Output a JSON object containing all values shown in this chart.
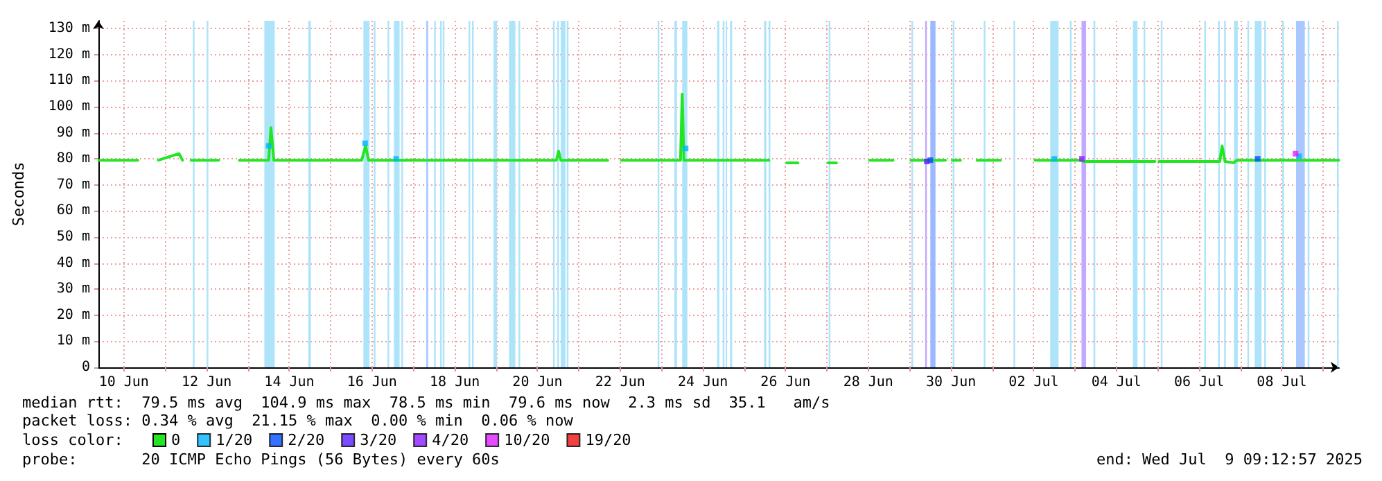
{
  "chart_data": {
    "type": "line",
    "ylabel": "Seconds",
    "legend_title": "loss color:",
    "annotations": [
      "median rtt:  79.5 ms avg  104.9 ms max  78.5 ms min  79.6 ms now  2.3 ms sd  35.1   am/s",
      "packet loss: 0.34 % avg  21.15 % max  0.00 % min  0.06 % now",
      "probe:       20 ICMP Echo Pings (56 Bytes) every 60s",
      "end: Wed Jul  9 09:12:57 2025"
    ],
    "xlim": [
      "2025-06-09T09:12",
      "2025-07-09T09:12"
    ],
    "xticks": [
      {
        "value": "2025-06-10",
        "label": "10 Jun"
      },
      {
        "value": "2025-06-11",
        "label": null
      },
      {
        "value": "2025-06-12",
        "label": "12 Jun"
      },
      {
        "value": "2025-06-13",
        "label": null
      },
      {
        "value": "2025-06-14",
        "label": "14 Jun"
      },
      {
        "value": "2025-06-15",
        "label": null
      },
      {
        "value": "2025-06-16",
        "label": "16 Jun"
      },
      {
        "value": "2025-06-17",
        "label": null
      },
      {
        "value": "2025-06-18",
        "label": "18 Jun"
      },
      {
        "value": "2025-06-19",
        "label": null
      },
      {
        "value": "2025-06-20",
        "label": "20 Jun"
      },
      {
        "value": "2025-06-21",
        "label": null
      },
      {
        "value": "2025-06-22",
        "label": "22 Jun"
      },
      {
        "value": "2025-06-23",
        "label": null
      },
      {
        "value": "2025-06-24",
        "label": "24 Jun"
      },
      {
        "value": "2025-06-25",
        "label": null
      },
      {
        "value": "2025-06-26",
        "label": "26 Jun"
      },
      {
        "value": "2025-06-27",
        "label": null
      },
      {
        "value": "2025-06-28",
        "label": "28 Jun"
      },
      {
        "value": "2025-06-29",
        "label": null
      },
      {
        "value": "2025-06-30",
        "label": "30 Jun"
      },
      {
        "value": "2025-07-01",
        "label": null
      },
      {
        "value": "2025-07-02",
        "label": "02 Jul"
      },
      {
        "value": "2025-07-03",
        "label": null
      },
      {
        "value": "2025-07-04",
        "label": "04 Jul"
      },
      {
        "value": "2025-07-05",
        "label": null
      },
      {
        "value": "2025-07-06",
        "label": "06 Jul"
      },
      {
        "value": "2025-07-07",
        "label": null
      },
      {
        "value": "2025-07-08",
        "label": "08 Jul"
      },
      {
        "value": "2025-07-09",
        "label": null
      }
    ],
    "ylim": [
      0,
      133
    ],
    "yticks": [
      0,
      {
        "value": 10,
        "label": "10 m"
      },
      {
        "value": 20,
        "label": "20 m"
      },
      {
        "value": 30,
        "label": "30 m"
      },
      {
        "value": 40,
        "label": "40 m"
      },
      {
        "value": 50,
        "label": "50 m"
      },
      {
        "value": 60,
        "label": "60 m"
      },
      {
        "value": 70,
        "label": "70 m"
      },
      {
        "value": 80,
        "label": "80 m"
      },
      {
        "value": 90,
        "label": "90 m"
      },
      {
        "value": 100,
        "label": "100 m"
      },
      {
        "value": 110,
        "label": "110 m"
      },
      {
        "value": 120,
        "label": "120 m"
      },
      {
        "value": 130,
        "label": "130 m"
      }
    ],
    "grid": true,
    "legend": "bottom left",
    "series": [
      {
        "name": "0",
        "marker": "none",
        "color": "#22e622",
        "x": [
          "2025-06-09T09:30",
          "2025-06-10T08:00",
          "2025-06-10T14:00",
          "2025-06-10T20:00",
          "2025-06-11T08:00",
          "2025-06-11T10:00",
          "2025-06-11T13:00",
          "2025-06-11T15:00",
          "2025-06-12T07:00",
          "2025-06-12T12:00",
          "2025-06-12T19:00",
          "2025-06-13T12:00",
          "2025-06-13T13:20",
          "2025-06-13T15:00",
          "2025-06-15T18:00",
          "2025-06-15T20:15",
          "2025-06-15T22:00",
          "2025-06-20T11:00",
          "2025-06-20T12:15",
          "2025-06-20T13:30",
          "2025-06-21T16:45",
          "2025-06-21T20:00",
          "2025-06-22T00:45",
          "2025-06-23T11:00",
          "2025-06-23T12:00",
          "2025-06-23T13:00",
          "2025-06-25T14:20",
          "2025-06-25T20:00",
          "2025-06-26T00:45",
          "2025-06-26T07:10",
          "2025-06-26T12:00",
          "2025-06-27T00:45",
          "2025-06-27T05:30",
          "2025-06-27T12:00",
          "2025-06-28T00:45",
          "2025-06-28T14:20",
          "2025-06-28T20:00",
          "2025-06-29T00:45",
          "2025-06-29T20:45",
          "2025-06-29T23:00",
          "2025-06-30T00:45",
          "2025-06-30T05:30",
          "2025-06-30T10:00",
          "2025-06-30T15:10",
          "2025-07-01T04:45",
          "2025-07-01T16:00",
          "2025-07-02T00:45",
          "2025-07-03T03:00",
          "2025-07-03T05:00",
          "2025-07-04T22:20",
          "2025-07-05T00:00",
          "2025-07-05T00:45",
          "2025-07-06T12:00",
          "2025-07-06T13:20",
          "2025-07-06T15:00",
          "2025-07-06T20:00",
          "2025-07-06T22:00",
          "2025-07-09T09:00"
        ],
        "values": [
          79.5,
          79.5,
          null,
          79.5,
          82,
          79.5,
          null,
          79.5,
          79.5,
          null,
          79.5,
          79.5,
          92,
          79.5,
          79.5,
          85,
          79.5,
          79.5,
          83,
          79.5,
          79.5,
          null,
          79.5,
          79.5,
          104.9,
          79.5,
          79.5,
          null,
          78.5,
          78.5,
          null,
          78.5,
          78.5,
          null,
          79.5,
          79.5,
          null,
          79.5,
          79.5,
          null,
          79.5,
          79.5,
          null,
          79.5,
          79.5,
          null,
          79.5,
          79.5,
          79,
          79,
          null,
          79,
          79,
          85,
          79,
          78.5,
          79.5,
          79.5
        ]
      },
      {
        "name": "1/20",
        "type": "scatter",
        "marker": "square",
        "color": "#00b4ff",
        "x": [
          "2025-06-13T12:00",
          "2025-06-15T20:00",
          "2025-06-16T14:00",
          "2025-06-23T14:00",
          "2025-07-02T12:00",
          "2025-07-08T10:00"
        ],
        "values": [
          85,
          86,
          80,
          84,
          80,
          81
        ]
      },
      {
        "name": "2/20",
        "type": "scatter",
        "marker": "square",
        "color": "#0050ff",
        "x": [
          "2025-06-29T12:00",
          "2025-07-07T10:00"
        ],
        "values": [
          79.5,
          80
        ]
      },
      {
        "name": "3/20",
        "type": "scatter",
        "marker": "square",
        "color": "#5a1eff",
        "x": [
          "2025-06-29T10:00"
        ],
        "values": [
          79
        ]
      },
      {
        "name": "4/20",
        "type": "scatter",
        "marker": "square",
        "color": "#8c1eff",
        "x": [
          "2025-07-03T04:00"
        ],
        "values": [
          80
        ]
      },
      {
        "name": "10/20",
        "type": "scatter",
        "marker": "square",
        "color": "#e01eff",
        "x": [
          "2025-07-08T08:00"
        ],
        "values": [
          82
        ]
      },
      {
        "name": "19/20",
        "type": "scatter",
        "marker": "square",
        "color": "#ee1111"
      }
    ],
    "bands": [
      {
        "axis": "x",
        "from": "2025-06-11T16:00",
        "to": "2025-06-11T17:00",
        "color": "#aee4fa"
      },
      {
        "axis": "x",
        "from": "2025-06-12T00:00",
        "to": "2025-06-12T01:00",
        "color": "#aee4fa"
      },
      {
        "axis": "x",
        "from": "2025-06-13T09:30",
        "to": "2025-06-13T15:30",
        "color": "#aee4fa"
      },
      {
        "axis": "x",
        "from": "2025-06-14T11:00",
        "to": "2025-06-14T12:30",
        "color": "#aee4fa"
      },
      {
        "axis": "x",
        "from": "2025-06-15T19:00",
        "to": "2025-06-15T22:30",
        "color": "#aee4fa"
      },
      {
        "axis": "x",
        "from": "2025-06-16T01:00",
        "to": "2025-06-16T02:00",
        "color": "#aee4fa"
      },
      {
        "axis": "x",
        "from": "2025-06-16T09:00",
        "to": "2025-06-16T10:00",
        "color": "#aee4fa"
      },
      {
        "axis": "x",
        "from": "2025-06-16T12:45",
        "to": "2025-06-16T16:00",
        "color": "#aee4fa"
      },
      {
        "axis": "x",
        "from": "2025-06-16T17:00",
        "to": "2025-06-16T18:00",
        "color": "#aee4fa"
      },
      {
        "axis": "x",
        "from": "2025-06-17T07:30",
        "to": "2025-06-17T08:30",
        "color": "#9cc8ff"
      },
      {
        "axis": "x",
        "from": "2025-06-17T12:00",
        "to": "2025-06-17T13:00",
        "color": "#aee4fa"
      },
      {
        "axis": "x",
        "from": "2025-06-17T15:30",
        "to": "2025-06-17T16:30",
        "color": "#aee4fa"
      },
      {
        "axis": "x",
        "from": "2025-06-17T17:00",
        "to": "2025-06-17T18:00",
        "color": "#aee4fa"
      },
      {
        "axis": "x",
        "from": "2025-06-18T08:00",
        "to": "2025-06-18T09:00",
        "color": "#aee4fa"
      },
      {
        "axis": "x",
        "from": "2025-06-18T10:00",
        "to": "2025-06-18T11:00",
        "color": "#aee4fa"
      },
      {
        "axis": "x",
        "from": "2025-06-18T22:30",
        "to": "2025-06-19T00:30",
        "color": "#aee4fa"
      },
      {
        "axis": "x",
        "from": "2025-06-19T07:30",
        "to": "2025-06-19T11:10",
        "color": "#aee4fa"
      },
      {
        "axis": "x",
        "from": "2025-06-19T13:00",
        "to": "2025-06-19T14:00",
        "color": "#aee4fa"
      },
      {
        "axis": "x",
        "from": "2025-06-20T09:00",
        "to": "2025-06-20T10:00",
        "color": "#aee4fa"
      },
      {
        "axis": "x",
        "from": "2025-06-20T11:30",
        "to": "2025-06-20T12:30",
        "color": "#aee4fa"
      },
      {
        "axis": "x",
        "from": "2025-06-20T13:30",
        "to": "2025-06-20T16:15",
        "color": "#aee4fa"
      },
      {
        "axis": "x",
        "from": "2025-06-20T17:00",
        "to": "2025-06-20T18:00",
        "color": "#aee4fa"
      },
      {
        "axis": "x",
        "from": "2025-06-22T21:45",
        "to": "2025-06-22T22:45",
        "color": "#aee4fa"
      },
      {
        "axis": "x",
        "from": "2025-06-23T07:30",
        "to": "2025-06-23T09:00",
        "color": "#aee4fa"
      },
      {
        "axis": "x",
        "from": "2025-06-23T12:00",
        "to": "2025-06-23T15:00",
        "color": "#aee4fa"
      },
      {
        "axis": "x",
        "from": "2025-06-24T08:15",
        "to": "2025-06-24T09:35",
        "color": "#aee4fa"
      },
      {
        "axis": "x",
        "from": "2025-06-24T11:30",
        "to": "2025-06-24T12:30",
        "color": "#aee4fa"
      },
      {
        "axis": "x",
        "from": "2025-06-24T13:15",
        "to": "2025-06-24T14:00",
        "color": "#aee4fa"
      },
      {
        "axis": "x",
        "from": "2025-06-24T15:45",
        "to": "2025-06-24T17:00",
        "color": "#aee4fa"
      },
      {
        "axis": "x",
        "from": "2025-06-25T11:30",
        "to": "2025-06-25T12:50",
        "color": "#aee4fa"
      },
      {
        "axis": "x",
        "from": "2025-06-25T14:10",
        "to": "2025-06-25T15:10",
        "color": "#aee4fa"
      },
      {
        "axis": "x",
        "from": "2025-06-27T01:00",
        "to": "2025-06-27T02:00",
        "color": "#aee4fa"
      },
      {
        "axis": "x",
        "from": "2025-06-29T01:00",
        "to": "2025-06-29T02:00",
        "color": "#aee4fa"
      },
      {
        "axis": "x",
        "from": "2025-06-29T09:00",
        "to": "2025-06-29T10:00",
        "color": "#c4a8ff"
      },
      {
        "axis": "x",
        "from": "2025-06-29T12:00",
        "to": "2025-06-29T15:00",
        "color": "#9cb8ff"
      },
      {
        "axis": "x",
        "from": "2025-06-30T01:00",
        "to": "2025-06-30T02:00",
        "color": "#aee4fa"
      },
      {
        "axis": "x",
        "from": "2025-06-30T19:00",
        "to": "2025-06-30T20:00",
        "color": "#aee4fa"
      },
      {
        "axis": "x",
        "from": "2025-07-01T12:15",
        "to": "2025-07-01T13:15",
        "color": "#aee4fa"
      },
      {
        "axis": "x",
        "from": "2025-07-02T09:35",
        "to": "2025-07-02T14:25",
        "color": "#aee4fa"
      },
      {
        "axis": "x",
        "from": "2025-07-02T21:00",
        "to": "2025-07-02T22:00",
        "color": "#aee4fa"
      },
      {
        "axis": "x",
        "from": "2025-07-03T03:45",
        "to": "2025-07-03T06:25",
        "color": "#c4a8ff"
      },
      {
        "axis": "x",
        "from": "2025-07-03T10:40",
        "to": "2025-07-03T11:45",
        "color": "#aee4fa"
      },
      {
        "axis": "x",
        "from": "2025-07-04T09:35",
        "to": "2025-07-04T12:15",
        "color": "#aee4fa"
      },
      {
        "axis": "x",
        "from": "2025-07-04T15:45",
        "to": "2025-07-04T16:45",
        "color": "#aee4fa"
      },
      {
        "axis": "x",
        "from": "2025-07-05T01:45",
        "to": "2025-07-05T02:45",
        "color": "#aee4fa"
      },
      {
        "axis": "x",
        "from": "2025-07-06T03:00",
        "to": "2025-07-06T04:00",
        "color": "#aee4fa"
      },
      {
        "axis": "x",
        "from": "2025-07-06T11:00",
        "to": "2025-07-06T12:00",
        "color": "#aee4fa"
      },
      {
        "axis": "x",
        "from": "2025-07-06T14:30",
        "to": "2025-07-06T15:30",
        "color": "#aee4fa"
      },
      {
        "axis": "x",
        "from": "2025-07-06T20:15",
        "to": "2025-07-06T22:25",
        "color": "#aee4fa"
      },
      {
        "axis": "x",
        "from": "2025-07-07T04:00",
        "to": "2025-07-07T05:00",
        "color": "#aee4fa"
      },
      {
        "axis": "x",
        "from": "2025-07-07T08:15",
        "to": "2025-07-07T12:15",
        "color": "#aee4fa"
      },
      {
        "axis": "x",
        "from": "2025-07-07T13:45",
        "to": "2025-07-07T14:45",
        "color": "#aee4fa"
      },
      {
        "axis": "x",
        "from": "2025-07-08T00:15",
        "to": "2025-07-08T01:15",
        "color": "#aee4fa"
      },
      {
        "axis": "x",
        "from": "2025-07-08T08:15",
        "to": "2025-07-08T13:20",
        "color": "#a8c8ff"
      },
      {
        "axis": "x",
        "from": "2025-07-08T15:00",
        "to": "2025-07-08T16:00",
        "color": "#aee4fa"
      },
      {
        "axis": "x",
        "from": "2025-07-09T08:00",
        "to": "2025-07-09T09:00",
        "color": "#aee4fa"
      }
    ]
  }
}
